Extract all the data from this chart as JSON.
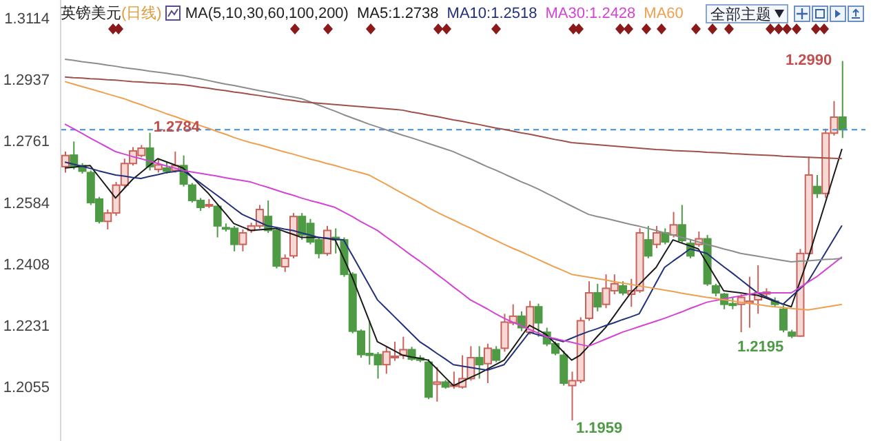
{
  "chart_data": {
    "type": "candlestick",
    "title": "英镑美元",
    "subtitle": "(日线)",
    "legend_title": "MA(5,10,30,60,100,200)",
    "marker": "none",
    "line_style": "solid",
    "grid": false,
    "tick_labels": "y",
    "categories": [
      null,
      null,
      null,
      null,
      null,
      null,
      null,
      null,
      null,
      null,
      null,
      null,
      null,
      null,
      null,
      null,
      null,
      null,
      null,
      null,
      null,
      null,
      null,
      null,
      null,
      null,
      null,
      null,
      null,
      null,
      null,
      null,
      null,
      null,
      null,
      null,
      null,
      null,
      null,
      null,
      null,
      null,
      null,
      null,
      null,
      null,
      null,
      null,
      null,
      null,
      null,
      null,
      null,
      null,
      null,
      null,
      null,
      null,
      null,
      null,
      null,
      null,
      null,
      null,
      null,
      null,
      null,
      null,
      null,
      null,
      null,
      null,
      null,
      null,
      null,
      null,
      null,
      null,
      null,
      null,
      null,
      null,
      null,
      null,
      null,
      null,
      null,
      null,
      null,
      null,
      null,
      null,
      null
    ],
    "ylim": [
      1.19,
      1.3165
    ],
    "yticks": [
      1.2055,
      1.2231,
      1.2408,
      1.2584,
      1.2761,
      1.2937,
      1.3114
    ],
    "ohlc": [
      [
        1.2687,
        1.273,
        1.267,
        1.2719
      ],
      [
        1.272,
        1.2759,
        1.2679,
        1.2687
      ],
      [
        1.269,
        1.2697,
        1.2667,
        1.2674
      ],
      [
        1.267,
        1.2676,
        1.2577,
        1.2584
      ],
      [
        1.2594,
        1.26,
        1.2524,
        1.253
      ],
      [
        1.253,
        1.2564,
        1.2507,
        1.2554
      ],
      [
        1.2554,
        1.2643,
        1.2546,
        1.2634
      ],
      [
        1.2634,
        1.271,
        1.2627,
        1.2696
      ],
      [
        1.2696,
        1.2743,
        1.269,
        1.2732
      ],
      [
        1.2719,
        1.2749,
        1.2714,
        1.274
      ],
      [
        1.274,
        1.2784,
        1.2676,
        1.2687
      ],
      [
        1.2679,
        1.271,
        1.267,
        1.2692
      ],
      [
        1.2683,
        1.27,
        1.2667,
        1.2674
      ],
      [
        1.2676,
        1.273,
        1.267,
        1.269
      ],
      [
        1.269,
        1.2719,
        1.263,
        1.2637
      ],
      [
        1.2634,
        1.264,
        1.2584,
        1.259
      ],
      [
        1.259,
        1.2597,
        1.256,
        1.257
      ],
      [
        1.2576,
        1.2594,
        1.2568,
        1.2578
      ],
      [
        1.2573,
        1.258,
        1.2484,
        1.2517
      ],
      [
        1.2512,
        1.2524,
        1.2501,
        1.2509
      ],
      [
        1.251,
        1.2517,
        1.2444,
        1.2464
      ],
      [
        1.2464,
        1.2507,
        1.2444,
        1.2497
      ],
      [
        1.2504,
        1.2526,
        1.2497,
        1.2517
      ],
      [
        1.2517,
        1.2577,
        1.251,
        1.2564
      ],
      [
        1.2544,
        1.259,
        1.2497,
        1.2504
      ],
      [
        1.2504,
        1.251,
        1.2395,
        1.2402
      ],
      [
        1.24,
        1.2435,
        1.2385,
        1.2424
      ],
      [
        1.2431,
        1.2554,
        1.2424,
        1.2544
      ],
      [
        1.2544,
        1.2554,
        1.2477,
        1.2491
      ],
      [
        1.2524,
        1.2537,
        1.2464,
        1.2471
      ],
      [
        1.2477,
        1.2484,
        1.2424,
        1.2438
      ],
      [
        1.2438,
        1.2517,
        1.2431,
        1.2504
      ],
      [
        1.2484,
        1.251,
        1.2438,
        1.2477
      ],
      [
        1.2477,
        1.2484,
        1.2371,
        1.2378
      ],
      [
        1.2378,
        1.2384,
        1.2209,
        1.2215
      ],
      [
        1.2215,
        1.222,
        1.2139,
        1.2148
      ],
      [
        1.2151,
        1.2245,
        1.2119,
        1.2146
      ],
      [
        1.2148,
        1.2155,
        1.2079,
        1.2119
      ],
      [
        1.2119,
        1.2172,
        1.2093,
        1.2156
      ],
      [
        1.2139,
        1.2185,
        1.213,
        1.2143
      ],
      [
        1.2146,
        1.2199,
        1.2135,
        1.2162
      ],
      [
        1.2162,
        1.217,
        1.213,
        1.2135
      ],
      [
        1.2138,
        1.2146,
        1.2126,
        1.2132
      ],
      [
        1.2126,
        1.2135,
        1.202,
        1.2026
      ],
      [
        1.2063,
        1.2112,
        1.2013,
        1.2069
      ],
      [
        1.2069,
        1.2075,
        1.205,
        1.2055
      ],
      [
        1.2058,
        1.2099,
        1.205,
        1.2061
      ],
      [
        1.2055,
        1.2146,
        1.205,
        1.2079
      ],
      [
        1.2079,
        1.2172,
        1.2073,
        1.2139
      ],
      [
        1.2139,
        1.2172,
        1.2079,
        1.2119
      ],
      [
        1.2122,
        1.2179,
        1.2066,
        1.2166
      ],
      [
        1.2162,
        1.2172,
        1.2126,
        1.2132
      ],
      [
        1.2166,
        1.2265,
        1.2156,
        1.2241
      ],
      [
        1.2239,
        1.2292,
        1.2232,
        1.2258
      ],
      [
        1.2258,
        1.2272,
        1.2215,
        1.2225
      ],
      [
        1.2212,
        1.2302,
        1.2205,
        1.2285
      ],
      [
        1.2285,
        1.2294,
        1.2199,
        1.2239
      ],
      [
        1.2212,
        1.2225,
        1.2172,
        1.2179
      ],
      [
        1.2179,
        1.2185,
        1.2146,
        1.2152
      ],
      [
        1.2146,
        1.2159,
        1.2059,
        1.2066
      ],
      [
        1.2059,
        1.2099,
        1.1959,
        1.2073
      ],
      [
        1.2073,
        1.2255,
        1.2066,
        1.2245
      ],
      [
        1.2252,
        1.2358,
        1.2245,
        1.2325
      ],
      [
        1.2325,
        1.2351,
        1.2272,
        1.2285
      ],
      [
        1.2292,
        1.2378,
        1.2281,
        1.2338
      ],
      [
        1.2331,
        1.2378,
        1.2321,
        1.2351
      ],
      [
        1.2345,
        1.2358,
        1.2318,
        1.2325
      ],
      [
        1.2321,
        1.2365,
        1.2285,
        1.2331
      ],
      [
        1.2331,
        1.251,
        1.2325,
        1.2497
      ],
      [
        1.2477,
        1.2517,
        1.2424,
        1.2431
      ],
      [
        1.2464,
        1.2517,
        1.2453,
        1.2497
      ],
      [
        1.2497,
        1.251,
        1.2464,
        1.2471
      ],
      [
        1.2491,
        1.2557,
        1.2484,
        1.252
      ],
      [
        1.252,
        1.2577,
        1.2467,
        1.2475
      ],
      [
        1.2467,
        1.2477,
        1.2424,
        1.2431
      ],
      [
        1.2464,
        1.2501,
        1.2457,
        1.248
      ],
      [
        1.248,
        1.2491,
        1.2345,
        1.2351
      ],
      [
        1.2345,
        1.2351,
        1.2315,
        1.2325
      ],
      [
        1.2321,
        1.2325,
        1.2278,
        1.2292
      ],
      [
        1.2294,
        1.2312,
        1.2278,
        1.2289
      ],
      [
        1.2292,
        1.2321,
        1.2212,
        1.2312
      ],
      [
        1.2296,
        1.2371,
        1.2225,
        1.2301
      ],
      [
        1.2305,
        1.2404,
        1.2265,
        1.2325
      ],
      [
        1.2322,
        1.2338,
        1.2312,
        1.2327
      ],
      [
        1.2301,
        1.2312,
        1.2285,
        1.2292
      ],
      [
        1.2278,
        1.2289,
        1.2212,
        1.2219
      ],
      [
        1.2212,
        1.2219,
        1.2195,
        1.2201
      ],
      [
        1.2201,
        1.2451,
        1.2199,
        1.2438
      ],
      [
        1.2438,
        1.2716,
        1.2431,
        1.2663
      ],
      [
        1.263,
        1.2663,
        1.2597,
        1.261
      ],
      [
        1.261,
        1.2796,
        1.2597,
        1.2783
      ],
      [
        1.2783,
        1.2875,
        1.2776,
        1.2829
      ],
      [
        1.2829,
        1.299,
        1.2769,
        1.2793
      ]
    ],
    "colors": [
      "#c8625a",
      "#4e9a45",
      "#4e9a45",
      "#4e9a45",
      "#4e9a45",
      "#c8625a",
      "#c8625a",
      "#c8625a",
      "#c8625a",
      "#c8625a",
      "#4e9a45",
      "#c8625a",
      "#4e9a45",
      "#c8625a",
      "#4e9a45",
      "#4e9a45",
      "#4e9a45",
      "#c8625a",
      "#4e9a45",
      "#4e9a45",
      "#4e9a45",
      "#c8625a",
      "#c8625a",
      "#c8625a",
      "#4e9a45",
      "#4e9a45",
      "#c8625a",
      "#c8625a",
      "#4e9a45",
      "#4e9a45",
      "#4e9a45",
      "#c8625a",
      "#4e9a45",
      "#4e9a45",
      "#4e9a45",
      "#4e9a45",
      "#4e9a45",
      "#4e9a45",
      "#c8625a",
      "#c8625a",
      "#c8625a",
      "#4e9a45",
      "#4e9a45",
      "#4e9a45",
      "#c8625a",
      "#4e9a45",
      "#c8625a",
      "#c8625a",
      "#c8625a",
      "#4e9a45",
      "#c8625a",
      "#4e9a45",
      "#c8625a",
      "#c8625a",
      "#4e9a45",
      "#c8625a",
      "#4e9a45",
      "#4e9a45",
      "#4e9a45",
      "#4e9a45",
      "#c8625a",
      "#c8625a",
      "#c8625a",
      "#4e9a45",
      "#c8625a",
      "#c8625a",
      "#4e9a45",
      "#c8625a",
      "#c8625a",
      "#4e9a45",
      "#c8625a",
      "#4e9a45",
      "#c8625a",
      "#4e9a45",
      "#4e9a45",
      "#c8625a",
      "#4e9a45",
      "#4e9a45",
      "#4e9a45",
      "#4e9a45",
      "#c8625a",
      "#c8625a",
      "#c8625a",
      "#c8625a",
      "#4e9a45",
      "#4e9a45",
      "#4e9a45",
      "#c8625a",
      "#c8625a",
      "#4e9a45",
      "#c8625a",
      "#c8625a",
      "#4e9a45"
    ],
    "series": [
      {
        "type": "line",
        "name": "MA5:1.2738",
        "color": "#1a1a1a",
        "values": [
          1.2683,
          1.2685,
          1.2688,
          1.269,
          1.2659,
          1.2628,
          1.2597,
          1.2624,
          1.265,
          1.267,
          1.269,
          1.271,
          1.2701,
          1.2692,
          1.2683,
          1.2659,
          1.2634,
          1.261,
          1.2581,
          1.2553,
          1.2524,
          1.2514,
          1.2504,
          1.2506,
          1.2508,
          1.251,
          1.2501,
          1.2493,
          1.2484,
          1.2484,
          1.2484,
          1.2481,
          1.2477,
          1.2424,
          1.2371,
          1.2309,
          1.2247,
          1.2185,
          1.2172,
          1.2159,
          1.2146,
          1.2141,
          1.2137,
          1.2132,
          1.2108,
          1.2083,
          1.2059,
          1.207,
          1.2082,
          1.2093,
          1.2106,
          1.2119,
          1.2132,
          1.2165,
          1.2199,
          1.2232,
          1.2219,
          1.2205,
          1.2181,
          1.2156,
          1.2132,
          1.2146,
          1.2172,
          1.2199,
          1.2225,
          1.2258,
          1.2292,
          1.2325,
          1.2349,
          1.2374,
          1.2398,
          1.2438,
          1.2477,
          1.2468,
          1.246,
          1.2451,
          1.2411,
          1.2371,
          1.2331,
          1.2328,
          1.2325,
          1.2321,
          1.2318,
          1.231,
          1.2301,
          1.2293,
          1.2285,
          1.2355,
          1.2424,
          1.2503,
          1.2581,
          1.266,
          1.2738
        ]
      },
      {
        "type": "line",
        "name": "MA10:1.2518",
        "color": "#23307a",
        "values": [
          1.27,
          1.2694,
          1.2688,
          1.2682,
          1.2675,
          1.2669,
          1.2663,
          1.266,
          1.2656,
          1.2653,
          1.2659,
          1.2664,
          1.267,
          1.2673,
          1.2676,
          1.2658,
          1.2641,
          1.2623,
          1.2605,
          1.2587,
          1.2568,
          1.255,
          1.2539,
          1.2528,
          1.2517,
          1.2513,
          1.2508,
          1.2504,
          1.2497,
          1.2491,
          1.2484,
          1.2482,
          1.2479,
          1.2477,
          1.2434,
          1.2391,
          1.2348,
          1.2305,
          1.2281,
          1.2257,
          1.2233,
          1.2209,
          1.2185,
          1.2169,
          1.2152,
          1.2136,
          1.2119,
          1.2115,
          1.2111,
          1.2107,
          1.2103,
          1.2111,
          1.2119,
          1.215,
          1.2181,
          1.2212,
          1.2205,
          1.2199,
          1.2192,
          1.2185,
          1.2195,
          1.2205,
          1.2214,
          1.2222,
          1.2231,
          1.2239,
          1.2248,
          1.2256,
          1.2265,
          1.2309,
          1.2354,
          1.2398,
          1.2416,
          1.2433,
          1.2451,
          1.2445,
          1.2438,
          1.2419,
          1.24,
          1.2382,
          1.2363,
          1.2344,
          1.2325,
          1.2314,
          1.2303,
          1.2292,
          1.2314,
          1.2336,
          1.2358,
          1.2398,
          1.2438,
          1.2478,
          1.2518
        ]
      },
      {
        "type": "line",
        "name": "MA30:1.2428",
        "color": "#d444d4",
        "values": [
          1.2809,
          1.2796,
          1.2783,
          1.2769,
          1.2756,
          1.2743,
          1.273,
          1.2723,
          1.2716,
          1.271,
          1.2703,
          1.2696,
          1.2689,
          1.2683,
          1.2676,
          1.2672,
          1.2668,
          1.2664,
          1.266,
          1.2655,
          1.2651,
          1.2647,
          1.2643,
          1.2635,
          1.2628,
          1.262,
          1.2612,
          1.2605,
          1.2597,
          1.259,
          1.2584,
          1.2577,
          1.257,
          1.2557,
          1.2544,
          1.253,
          1.2517,
          1.2504,
          1.2486,
          1.2469,
          1.2451,
          1.2433,
          1.2416,
          1.2398,
          1.2379,
          1.2361,
          1.2342,
          1.2324,
          1.2305,
          1.2292,
          1.2279,
          1.2265,
          1.2252,
          1.2241,
          1.2231,
          1.222,
          1.221,
          1.2199,
          1.2194,
          1.2188,
          1.2183,
          1.2177,
          1.2172,
          1.2182,
          1.2192,
          1.2202,
          1.2212,
          1.222,
          1.2228,
          1.2236,
          1.2244,
          1.2252,
          1.2261,
          1.227,
          1.228,
          1.2289,
          1.2298,
          1.2303,
          1.2307,
          1.2312,
          1.2316,
          1.2321,
          1.2325,
          1.2325,
          1.2325,
          1.2325,
          1.2325,
          1.234,
          1.2356,
          1.2371,
          1.239,
          1.2409,
          1.2428
        ]
      },
      {
        "type": "line",
        "name": "MA60",
        "color": "#eea050",
        "values": [
          1.2931,
          1.2924,
          1.2917,
          1.291,
          1.2903,
          1.2896,
          1.2889,
          1.2882,
          1.2873,
          1.2865,
          1.2856,
          1.2848,
          1.2839,
          1.2831,
          1.2822,
          1.2814,
          1.2805,
          1.2797,
          1.2788,
          1.278,
          1.2771,
          1.2763,
          1.2756,
          1.275,
          1.2743,
          1.2736,
          1.2729,
          1.2723,
          1.2716,
          1.2709,
          1.2703,
          1.2696,
          1.269,
          1.2683,
          1.2676,
          1.267,
          1.2663,
          1.265,
          1.2637,
          1.2623,
          1.261,
          1.2597,
          1.2584,
          1.257,
          1.2557,
          1.2545,
          1.2534,
          1.2522,
          1.2511,
          1.2499,
          1.2487,
          1.2476,
          1.2464,
          1.2453,
          1.2443,
          1.2432,
          1.2421,
          1.241,
          1.2399,
          1.2389,
          1.2378,
          1.2374,
          1.237,
          1.2366,
          1.2362,
          1.2357,
          1.2353,
          1.2349,
          1.2345,
          1.2341,
          1.2337,
          1.2333,
          1.2329,
          1.2324,
          1.232,
          1.2316,
          1.2312,
          1.2309,
          1.2305,
          1.2302,
          1.2298,
          1.2295,
          1.2292,
          1.2288,
          1.2285,
          1.2283,
          1.228,
          1.2278,
          1.2276,
          1.228,
          1.2284,
          1.2288,
          1.2292
        ]
      },
      {
        "type": "line",
        "color": "#8c8c8c",
        "values": [
          1.2995,
          1.2992,
          1.2988,
          1.2985,
          1.2982,
          1.2978,
          1.2975,
          1.2971,
          1.2968,
          1.2965,
          1.2961,
          1.2958,
          1.2955,
          1.2951,
          1.2948,
          1.2943,
          1.2939,
          1.2934,
          1.2929,
          1.2924,
          1.292,
          1.2915,
          1.291,
          1.2905,
          1.2901,
          1.2896,
          1.2891,
          1.2887,
          1.2882,
          1.2873,
          1.2864,
          1.2855,
          1.2846,
          1.2836,
          1.2827,
          1.2818,
          1.2809,
          1.2801,
          1.2793,
          1.2785,
          1.2777,
          1.277,
          1.2762,
          1.2754,
          1.2746,
          1.2738,
          1.273,
          1.2719,
          1.2709,
          1.2698,
          1.2687,
          1.2677,
          1.2666,
          1.2655,
          1.2644,
          1.2634,
          1.2623,
          1.2611,
          1.2599,
          1.2586,
          1.2574,
          1.2562,
          1.255,
          1.2544,
          1.2539,
          1.2533,
          1.2527,
          1.2521,
          1.2516,
          1.251,
          1.2504,
          1.2497,
          1.2491,
          1.2484,
          1.2478,
          1.2471,
          1.2464,
          1.2458,
          1.2451,
          1.2445,
          1.2438,
          1.2434,
          1.243,
          1.2426,
          1.2422,
          1.2418,
          1.2414,
          1.2416,
          1.2417,
          1.2419,
          1.2421,
          1.2422,
          1.2424
        ]
      },
      {
        "type": "line",
        "color": "#a0504a",
        "values": [
          1.2944,
          1.2942,
          1.2941,
          1.2939,
          1.2938,
          1.2936,
          1.2935,
          1.2933,
          1.2931,
          1.293,
          1.2928,
          1.2927,
          1.2925,
          1.2924,
          1.2922,
          1.2919,
          1.2915,
          1.2912,
          1.2908,
          1.2905,
          1.2901,
          1.2898,
          1.2894,
          1.2891,
          1.2887,
          1.2884,
          1.288,
          1.2877,
          1.2873,
          1.2871,
          1.2869,
          1.2867,
          1.2865,
          1.2863,
          1.2861,
          1.2859,
          1.2857,
          1.2855,
          1.2853,
          1.2851,
          1.2849,
          1.2844,
          1.284,
          1.2835,
          1.2831,
          1.2826,
          1.2821,
          1.2817,
          1.2812,
          1.2808,
          1.2803,
          1.2798,
          1.2794,
          1.2789,
          1.2784,
          1.278,
          1.2775,
          1.277,
          1.2765,
          1.2761,
          1.2756,
          1.2754,
          1.2752,
          1.275,
          1.2748,
          1.2746,
          1.2744,
          1.2742,
          1.274,
          1.2738,
          1.2736,
          1.2735,
          1.2733,
          1.2732,
          1.2731,
          1.273,
          1.2728,
          1.2727,
          1.2726,
          1.2724,
          1.2723,
          1.2722,
          1.2721,
          1.272,
          1.2719,
          1.2717,
          1.2716,
          1.2715,
          1.2714,
          1.2713,
          1.2712,
          1.2711,
          1.271
        ]
      }
    ],
    "ref_lines": [
      {
        "axis": "y",
        "value": 1.2793,
        "color": "#3f8fd8",
        "line_style": "dashed"
      }
    ],
    "annotations": [
      {
        "text": "1.2784",
        "y": 1.2784
      },
      "1.1959",
      "1.2195",
      "1.2990",
      "全部主题"
    ]
  }
}
